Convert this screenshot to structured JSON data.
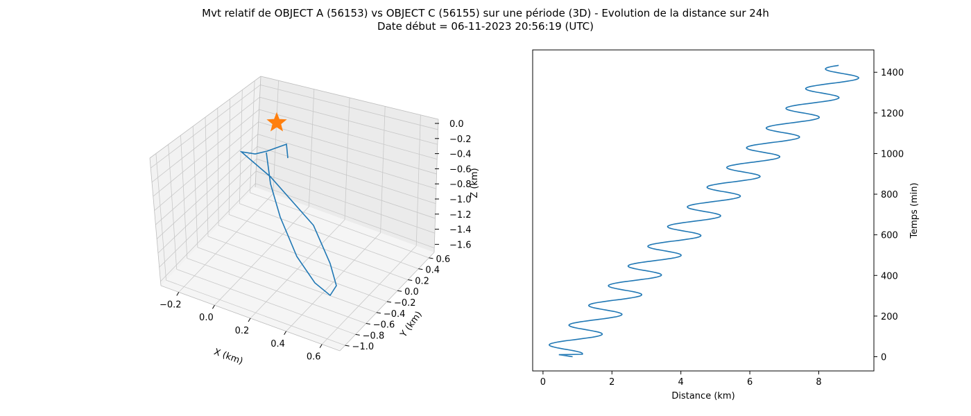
{
  "title": {
    "line1": "Mvt relatif de OBJECT A (56153) vs OBJECT C (56155) sur une période (3D) - Evolution de la distance sur 24h",
    "line2": "Date début = 06-11-2023 20:56:19 (UTC)"
  },
  "colors": {
    "line": "#1f77b4",
    "marker": "#ff7f0e",
    "pane": "#f2f2f2",
    "grid": "#c8c8c8"
  },
  "chart_data": [
    {
      "type": "line3d",
      "xlabel": "X (km)",
      "ylabel": "Y (km)",
      "zlabel": "Z (km)",
      "xticks": [
        "−0.2",
        "0.0",
        "0.2",
        "0.4",
        "0.6"
      ],
      "yticks": [
        "−1.0",
        "−0.8",
        "−0.6",
        "−0.4",
        "−0.2",
        "0.0",
        "0.2",
        "0.4",
        "0.6"
      ],
      "zticks": [
        "0.0",
        "−0.2",
        "−0.4",
        "−0.6",
        "−0.8",
        "−1.0",
        "−1.2",
        "−1.4",
        "−1.6"
      ],
      "xlim": [
        -0.3,
        0.7
      ],
      "ylim": [
        -1.05,
        0.7
      ],
      "zlim": [
        -1.65,
        0.05
      ],
      "grid": true,
      "marker": {
        "shape": "star",
        "x": 0.0,
        "y": 0.0,
        "z": 0.0
      },
      "trajectory": [
        {
          "x": 0.08,
          "y": 0.3,
          "z": -0.45
        },
        {
          "x": 0.07,
          "y": 0.25,
          "z": -0.3
        },
        {
          "x": 0.0,
          "y": 0.2,
          "z": -0.35
        },
        {
          "x": -0.05,
          "y": 0.15,
          "z": -0.4
        },
        {
          "x": -0.08,
          "y": 0.1,
          "z": -0.4
        },
        {
          "x": 0.1,
          "y": -0.1,
          "z": -0.6
        },
        {
          "x": 0.3,
          "y": -0.35,
          "z": -0.9
        },
        {
          "x": 0.45,
          "y": -0.6,
          "z": -1.15
        },
        {
          "x": 0.55,
          "y": -0.85,
          "z": -1.4
        },
        {
          "x": 0.5,
          "y": -0.9,
          "z": -1.5
        },
        {
          "x": 0.35,
          "y": -0.7,
          "z": -1.4
        },
        {
          "x": 0.15,
          "y": -0.45,
          "z": -1.2
        },
        {
          "x": -0.05,
          "y": -0.15,
          "z": -0.95
        },
        {
          "x": -0.12,
          "y": 0.0,
          "z": -0.7
        },
        {
          "x": -0.12,
          "y": 0.12,
          "z": -0.5
        }
      ]
    },
    {
      "type": "line",
      "xlabel": "Distance (km)",
      "ylabel": "Temps (min)",
      "xlim": [
        -0.3,
        9.6
      ],
      "ylim": [
        -70,
        1510
      ],
      "xticks": [
        "0",
        "2",
        "4",
        "6",
        "8"
      ],
      "yticks": [
        "0",
        "200",
        "400",
        "600",
        "800",
        "1000",
        "1200",
        "1400"
      ],
      "yaxis_position": "right",
      "grid": false,
      "series": {
        "mean_start": 0.45,
        "mean_rate_per_min": 0.0059,
        "amplitude": 0.62,
        "period_min": 97,
        "t_start": 0,
        "t_end": 1435,
        "start_distance": 0.86
      }
    }
  ]
}
